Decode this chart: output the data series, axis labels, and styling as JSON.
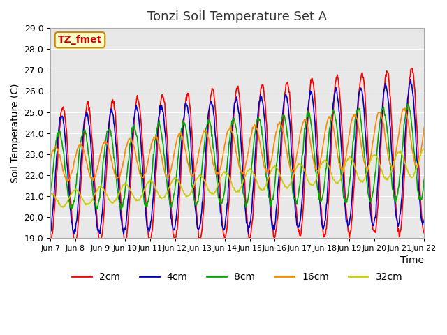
{
  "title": "Tonzi Soil Temperature Set A",
  "xlabel": "Time",
  "ylabel": "Soil Temperature (C)",
  "ylim": [
    19.0,
    29.0
  ],
  "yticks": [
    19.0,
    20.0,
    21.0,
    22.0,
    23.0,
    24.0,
    25.0,
    26.0,
    27.0,
    28.0,
    29.0
  ],
  "xtick_labels": [
    "Jun 7",
    "Jun 8",
    "Jun 9",
    "Jun 10",
    "Jun 11",
    "Jun 12",
    "Jun 13",
    "Jun 14",
    "Jun 15",
    "Jun 16",
    "Jun 17",
    "Jun 18",
    "Jun 19",
    "Jun 20",
    "Jun 21",
    "Jun 22"
  ],
  "series_labels": [
    "2cm",
    "4cm",
    "8cm",
    "16cm",
    "32cm"
  ],
  "series_colors": [
    "#ff0000",
    "#0000cc",
    "#00aa00",
    "#ff8800",
    "#cccc00"
  ],
  "annotation_text": "TZ_fmet",
  "annotation_color": "#cc0000",
  "annotation_bg": "#ffffcc",
  "annotation_border": "#cc8800",
  "background_color": "#e8e8e8",
  "n_days": 15,
  "points_per_day": 48
}
